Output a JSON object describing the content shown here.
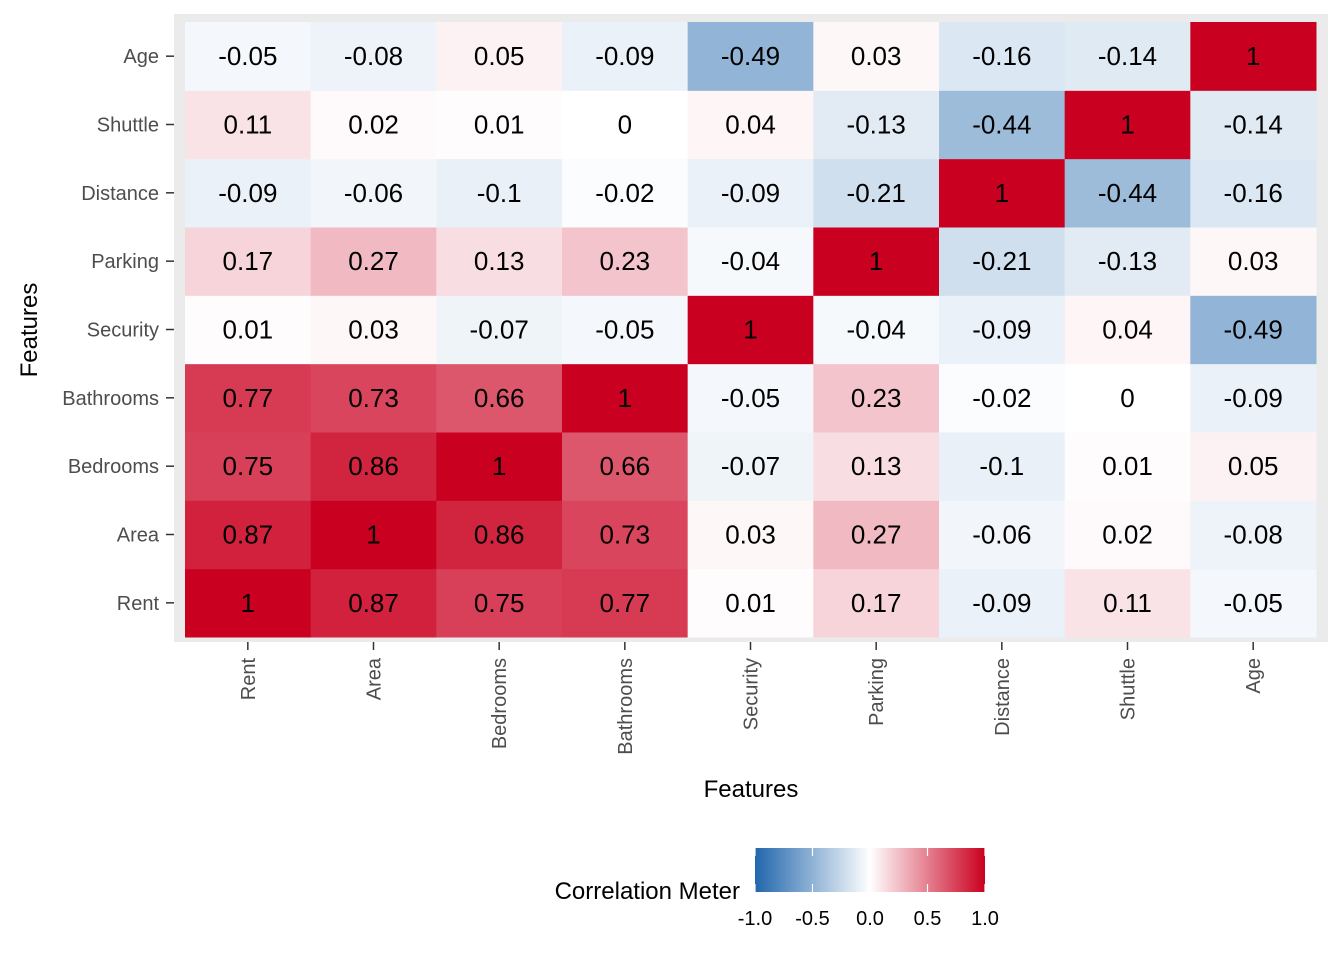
{
  "chart_data": {
    "type": "heatmap",
    "title": "",
    "xlabel": "Features",
    "ylabel": "Features",
    "x_categories": [
      "Rent",
      "Area",
      "Bedrooms",
      "Bathrooms",
      "Security",
      "Parking",
      "Distance",
      "Shuttle",
      "Age"
    ],
    "y_categories": [
      "Rent",
      "Area",
      "Bedrooms",
      "Bathrooms",
      "Security",
      "Parking",
      "Distance",
      "Shuttle",
      "Age"
    ],
    "values": [
      [
        1,
        0.87,
        0.75,
        0.77,
        0.01,
        0.17,
        -0.09,
        0.11,
        -0.05
      ],
      [
        0.87,
        1,
        0.86,
        0.73,
        0.03,
        0.27,
        -0.06,
        0.02,
        -0.08
      ],
      [
        0.75,
        0.86,
        1,
        0.66,
        -0.07,
        0.13,
        -0.1,
        0.01,
        0.05
      ],
      [
        0.77,
        0.73,
        0.66,
        1,
        -0.05,
        0.23,
        -0.02,
        0,
        -0.09
      ],
      [
        0.01,
        0.03,
        -0.07,
        -0.05,
        1,
        -0.04,
        -0.09,
        0.04,
        -0.49
      ],
      [
        0.17,
        0.27,
        0.13,
        0.23,
        -0.04,
        1,
        -0.21,
        -0.13,
        0.03
      ],
      [
        -0.09,
        -0.06,
        -0.1,
        -0.02,
        -0.09,
        -0.21,
        1,
        -0.44,
        -0.16
      ],
      [
        0.11,
        0.02,
        0.01,
        0,
        0.04,
        -0.13,
        -0.44,
        1,
        -0.14
      ],
      [
        -0.05,
        -0.08,
        0.05,
        -0.09,
        -0.49,
        0.03,
        -0.16,
        -0.14,
        1
      ]
    ],
    "value_labels": [
      [
        "1",
        "0.87",
        "0.75",
        "0.77",
        "0.01",
        "0.17",
        "-0.09",
        "0.11",
        "-0.05"
      ],
      [
        "0.87",
        "1",
        "0.86",
        "0.73",
        "0.03",
        "0.27",
        "-0.06",
        "0.02",
        "-0.08"
      ],
      [
        "0.75",
        "0.86",
        "1",
        "0.66",
        "-0.07",
        "0.13",
        "-0.1",
        "0.01",
        "0.05"
      ],
      [
        "0.77",
        "0.73",
        "0.66",
        "1",
        "-0.05",
        "0.23",
        "-0.02",
        "0",
        "-0.09"
      ],
      [
        "0.01",
        "0.03",
        "-0.07",
        "-0.05",
        "1",
        "-0.04",
        "-0.09",
        "0.04",
        "-0.49"
      ],
      [
        "0.17",
        "0.27",
        "0.13",
        "0.23",
        "-0.04",
        "1",
        "-0.21",
        "-0.13",
        "0.03"
      ],
      [
        "-0.09",
        "-0.06",
        "-0.1",
        "-0.02",
        "-0.09",
        "-0.21",
        "1",
        "-0.44",
        "-0.16"
      ],
      [
        "0.11",
        "0.02",
        "0.01",
        "0",
        "0.04",
        "-0.13",
        "-0.44",
        "1",
        "-0.14"
      ],
      [
        "-0.05",
        "-0.08",
        "0.05",
        "-0.09",
        "-0.49",
        "0.03",
        "-0.16",
        "-0.14",
        "1"
      ]
    ],
    "color_scale": {
      "low": "#2166AC",
      "mid": "#FFFFFF",
      "high": "#CA0020",
      "limits": [
        -1,
        1
      ]
    },
    "colors": {
      "panel_background": "#EBEBEB",
      "tick_label": "#4D4D4D",
      "cell_text": "#000000",
      "axis_title": "#000000"
    },
    "legend": {
      "title": "Correlation Meter",
      "position": "bottom",
      "breaks": [
        -1,
        -0.5,
        0,
        0.5,
        1
      ],
      "labels": [
        "-1.0",
        "-0.5",
        "0.0",
        "0.5",
        "1.0"
      ]
    },
    "grid": false
  }
}
